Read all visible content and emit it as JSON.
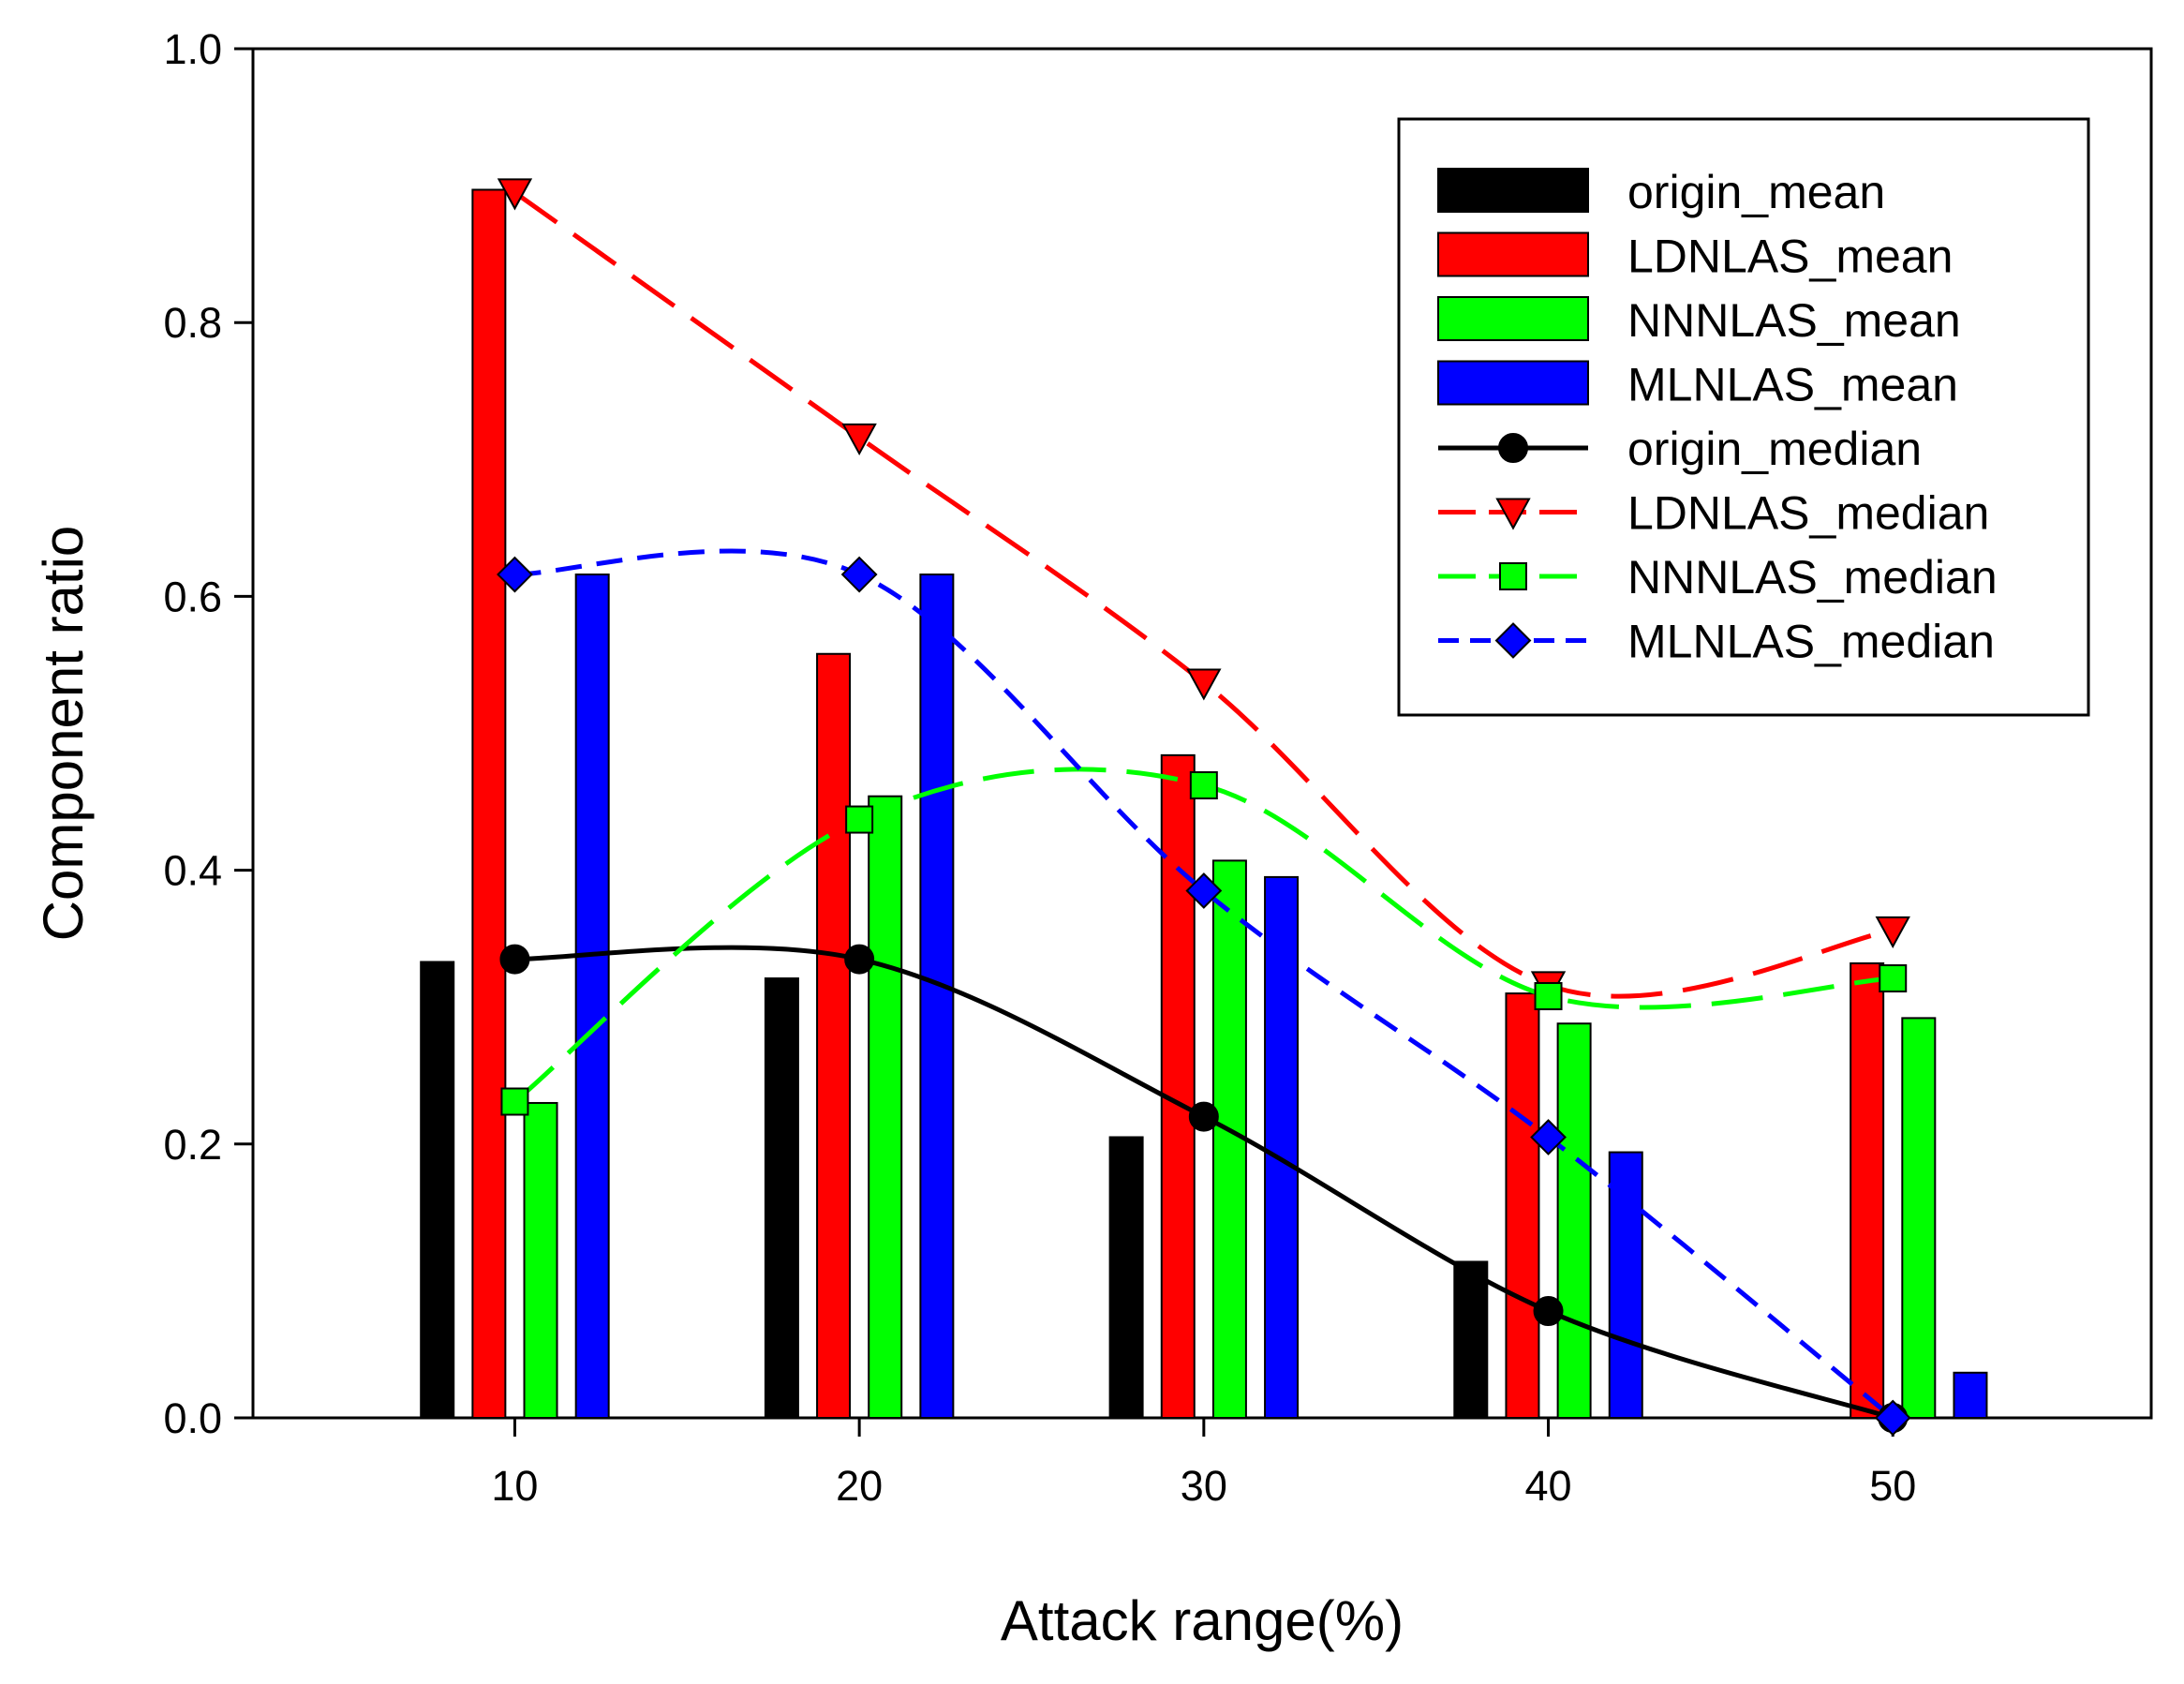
{
  "chart_data": {
    "type": "bar+line",
    "title": "",
    "xlabel": "Attack range(%)",
    "ylabel": "Component ratio",
    "categories": [
      "10",
      "20",
      "30",
      "40",
      "50"
    ],
    "x": [
      10,
      20,
      30,
      40,
      50
    ],
    "xlim": [
      2.4,
      57.5
    ],
    "ylim": [
      0.0,
      1.0
    ],
    "yticks": [
      0.0,
      0.2,
      0.4,
      0.6,
      0.8,
      1.0
    ],
    "ytick_labels": [
      "0.0",
      "0.2",
      "0.4",
      "0.6",
      "0.8",
      "1.0"
    ],
    "grid": false,
    "legend_position": "top-right",
    "bar_series": [
      {
        "name": "origin_mean",
        "color": "#000000",
        "values": [
          0.333,
          0.321,
          0.205,
          0.114,
          0.0
        ]
      },
      {
        "name": "LDNLAS_mean",
        "color": "#ff0000",
        "values": [
          0.897,
          0.558,
          0.484,
          0.31,
          0.332
        ]
      },
      {
        "name": "NNNLAS_mean",
        "color": "#00ff00",
        "values": [
          0.23,
          0.454,
          0.407,
          0.288,
          0.292
        ]
      },
      {
        "name": "MLNLAS_mean",
        "color": "#0000ff",
        "values": [
          0.616,
          0.616,
          0.395,
          0.194,
          0.033
        ]
      }
    ],
    "line_series": [
      {
        "name": "origin_median",
        "color": "#000000",
        "marker": "circle",
        "dash": "solid",
        "values": [
          0.335,
          0.335,
          0.22,
          0.078,
          0.0
        ]
      },
      {
        "name": "LDNLAS_median",
        "color": "#ff0000",
        "marker": "triangle-down",
        "dash": "long-dash",
        "values": [
          0.895,
          0.716,
          0.537,
          0.316,
          0.356
        ]
      },
      {
        "name": "NNNLAS_median",
        "color": "#00ff00",
        "marker": "square",
        "dash": "long-dash",
        "values": [
          0.231,
          0.437,
          0.462,
          0.308,
          0.321
        ]
      },
      {
        "name": "MLNLAS_median",
        "color": "#0000ff",
        "marker": "diamond",
        "dash": "short-dash",
        "values": [
          0.616,
          0.616,
          0.385,
          0.205,
          0.0
        ]
      }
    ]
  }
}
